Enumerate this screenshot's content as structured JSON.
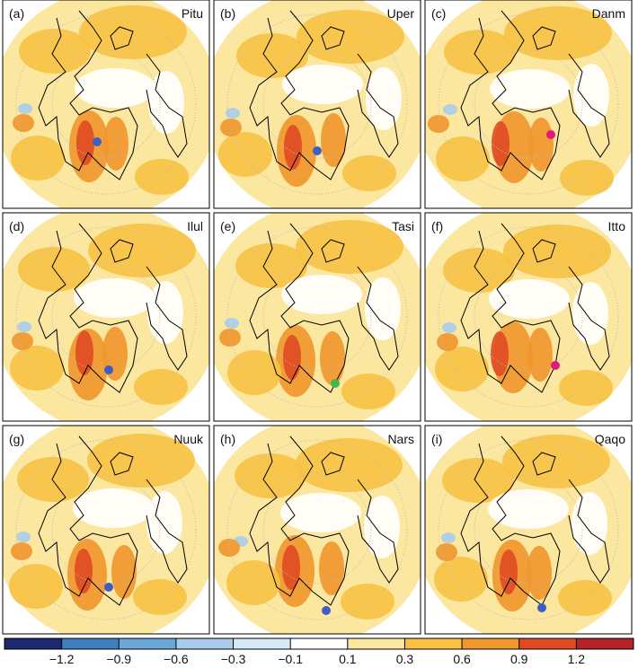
{
  "panels": [
    {
      "label": "(a)",
      "name": "Pitu"
    },
    {
      "label": "(b)",
      "name": "Uper"
    },
    {
      "label": "(c)",
      "name": "Danm"
    },
    {
      "label": "(d)",
      "name": "Ilul"
    },
    {
      "label": "(e)",
      "name": "Tasi"
    },
    {
      "label": "(f)",
      "name": "Itto"
    },
    {
      "label": "(g)",
      "name": "Nuuk"
    },
    {
      "label": "(h)",
      "name": "Nars"
    },
    {
      "label": "(i)",
      "name": "Qaqo"
    }
  ],
  "colorbar": {
    "colors": [
      "#1a2a6c",
      "#3f7fc0",
      "#6aa6d8",
      "#a9cdea",
      "#d6e9f6",
      "#ffffff",
      "#fbe7a0",
      "#f7c244",
      "#f0962e",
      "#df4a22",
      "#b5222a"
    ],
    "ticks": [
      {
        "value": -1.2,
        "label": "−1.2"
      },
      {
        "value": -0.9,
        "label": "−0.9"
      },
      {
        "value": -0.6,
        "label": "−0.6"
      },
      {
        "value": -0.3,
        "label": "−0.3"
      },
      {
        "value": -0.1,
        "label": "−0.1"
      },
      0.1,
      0.3,
      0.6,
      0.9,
      1.2
    ]
  }
}
